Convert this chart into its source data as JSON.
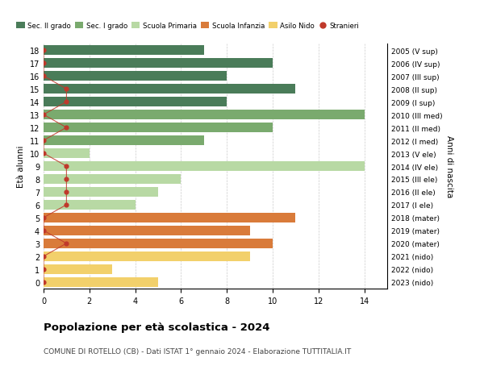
{
  "ages": [
    18,
    17,
    16,
    15,
    14,
    13,
    12,
    11,
    10,
    9,
    8,
    7,
    6,
    5,
    4,
    3,
    2,
    1,
    0
  ],
  "years": [
    "2005 (V sup)",
    "2006 (IV sup)",
    "2007 (III sup)",
    "2008 (II sup)",
    "2009 (I sup)",
    "2010 (III med)",
    "2011 (II med)",
    "2012 (I med)",
    "2013 (V ele)",
    "2014 (IV ele)",
    "2015 (III ele)",
    "2016 (II ele)",
    "2017 (I ele)",
    "2018 (mater)",
    "2019 (mater)",
    "2020 (mater)",
    "2021 (nido)",
    "2022 (nido)",
    "2023 (nido)"
  ],
  "bar_values": [
    7,
    10,
    8,
    11,
    8,
    14,
    10,
    7,
    2,
    14,
    6,
    5,
    4,
    11,
    9,
    10,
    9,
    3,
    5
  ],
  "bar_colors": [
    "#4a7c59",
    "#4a7c59",
    "#4a7c59",
    "#4a7c59",
    "#4a7c59",
    "#7aaa6e",
    "#7aaa6e",
    "#7aaa6e",
    "#b8d9a4",
    "#b8d9a4",
    "#b8d9a4",
    "#b8d9a4",
    "#b8d9a4",
    "#d97b3a",
    "#d97b3a",
    "#d97b3a",
    "#f2d06b",
    "#f2d06b",
    "#f2d06b"
  ],
  "stranieri_x": [
    0,
    0,
    0,
    1,
    1,
    0,
    1,
    0,
    0,
    1,
    1,
    1,
    1,
    0,
    0,
    1,
    0,
    0,
    0
  ],
  "legend_labels": [
    "Sec. II grado",
    "Sec. I grado",
    "Scuola Primaria",
    "Scuola Infanzia",
    "Asilo Nido",
    "Stranieri"
  ],
  "legend_colors": [
    "#4a7c59",
    "#7aaa6e",
    "#b8d9a4",
    "#d97b3a",
    "#f2d06b",
    "#c0392b"
  ],
  "ylabel": "Età alunni",
  "ylabel_right": "Anni di nascita",
  "title": "Popolazione per età scolastica - 2024",
  "subtitle": "COMUNE DI ROTELLO (CB) - Dati ISTAT 1° gennaio 2024 - Elaborazione TUTTITALIA.IT",
  "xlim": [
    0,
    15
  ],
  "ylim": [
    -0.5,
    18.5
  ],
  "xticks": [
    0,
    2,
    4,
    6,
    8,
    10,
    12,
    14
  ],
  "background_color": "#ffffff",
  "bar_height": 0.75
}
